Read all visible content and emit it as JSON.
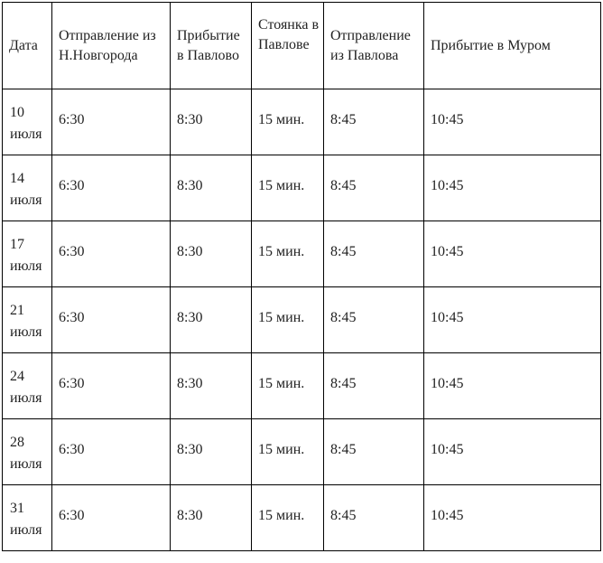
{
  "headers": [
    "Дата",
    "Отправление из Н.Новгорода",
    "Прибытие в Павлово",
    "Стоянка в Павлове",
    "Отправление из Павлова",
    "Прибытие в Муром"
  ],
  "rows": [
    {
      "date_day": "10",
      "date_month": "июля",
      "depart_nn": "6:30",
      "arrive_pavlovo": "8:30",
      "stop": "15 мин.",
      "depart_pavlovo": "8:45",
      "arrive_murom": "10:45"
    },
    {
      "date_day": "14",
      "date_month": "июля",
      "depart_nn": "6:30",
      "arrive_pavlovo": "8:30",
      "stop": "15 мин.",
      "depart_pavlovo": "8:45",
      "arrive_murom": "10:45"
    },
    {
      "date_day": "17",
      "date_month": "июля",
      "depart_nn": "6:30",
      "arrive_pavlovo": "8:30",
      "stop": "15 мин.",
      "depart_pavlovo": "8:45",
      "arrive_murom": "10:45"
    },
    {
      "date_day": "21",
      "date_month": "июля",
      "depart_nn": "6:30",
      "arrive_pavlovo": "8:30",
      "stop": "15 мин.",
      "depart_pavlovo": "8:45",
      "arrive_murom": "10:45"
    },
    {
      "date_day": "24",
      "date_month": "июля",
      "depart_nn": "6:30",
      "arrive_pavlovo": "8:30",
      "stop": "15 мин.",
      "depart_pavlovo": "8:45",
      "arrive_murom": "10:45"
    },
    {
      "date_day": "28",
      "date_month": "июля",
      "depart_nn": "6:30",
      "arrive_pavlovo": "8:30",
      "stop": "15 мин.",
      "depart_pavlovo": "8:45",
      "arrive_murom": "10:45"
    },
    {
      "date_day": "31",
      "date_month": "июля",
      "depart_nn": "6:30",
      "arrive_pavlovo": "8:30",
      "stop": "15 мин.",
      "depart_pavlovo": "8:45",
      "arrive_murom": "10:45"
    }
  ]
}
